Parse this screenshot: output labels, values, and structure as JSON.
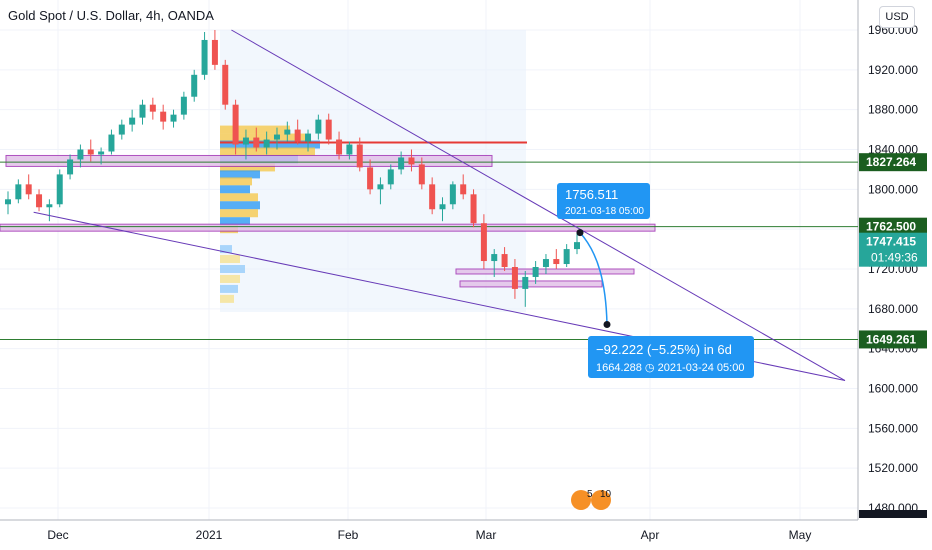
{
  "header": {
    "title": "Gold Spot / U.S. Dollar, 4h, OANDA",
    "currency_button": "USD"
  },
  "chart_data": {
    "type": "candlestick",
    "title": "Gold Spot / U.S. Dollar, 4h, OANDA",
    "y_ticks": [
      "1960.000",
      "1920.000",
      "1880.000",
      "1840.000",
      "1800.000",
      "1760.000",
      "1720.000",
      "1680.000",
      "1640.000",
      "1600.000",
      "1560.000",
      "1520.000",
      "1480.000"
    ],
    "y_tick_values": [
      1960,
      1920,
      1880,
      1840,
      1800,
      1760,
      1720,
      1680,
      1640,
      1600,
      1560,
      1520,
      1480
    ],
    "ylim": [
      1474,
      1964
    ],
    "x_ticks": [
      "Dec",
      "2021",
      "Feb",
      "Mar",
      "Apr",
      "May"
    ],
    "price_tags": [
      {
        "value": 1827.264,
        "label": "1827.264",
        "color": "#1b5e20"
      },
      {
        "value": 1762.5,
        "label": "1762.500",
        "color": "#1b5e20"
      },
      {
        "value": 1747.415,
        "label": "1747.415",
        "sub": "01:49:36",
        "color": "#26a69a"
      },
      {
        "value": 1649.261,
        "label": "1649.261",
        "color": "#1b5e20"
      }
    ],
    "horizontal_lines": [
      {
        "value": 1827.264,
        "color": "#2e7d32"
      },
      {
        "value": 1762.5,
        "color": "#2e7d32"
      },
      {
        "value": 1649.261,
        "color": "#2e7d32"
      }
    ],
    "red_level": 1847,
    "zones": [
      {
        "from": 1823,
        "to": 1834
      },
      {
        "from": 1758,
        "to": 1765
      },
      {
        "from": 1715,
        "to": 1720
      },
      {
        "from": 1702,
        "to": 1708
      }
    ],
    "trendlines": [
      {
        "from": [
          "2021-01-06",
          1960
        ],
        "to": [
          "2021-05-10",
          1608
        ]
      },
      {
        "from": [
          "2020-11-26",
          1777
        ],
        "to": [
          "2021-05-10",
          1608
        ]
      }
    ],
    "annotations": [
      {
        "label": "1756.511",
        "sub": "2021-03-18 05:00"
      },
      {
        "label": "−92.222 (−5.25%) in 6d",
        "sub": "1664.288 ◷ 2021-03-24  05:00"
      }
    ],
    "projection": {
      "from": 1756.511,
      "to": 1664.288
    },
    "earnings_labels": [
      "5",
      "10"
    ],
    "candles_approx": [
      [
        1785,
        1798,
        1775,
        1790
      ],
      [
        1790,
        1810,
        1786,
        1805
      ],
      [
        1805,
        1815,
        1790,
        1795
      ],
      [
        1795,
        1800,
        1778,
        1782
      ],
      [
        1782,
        1790,
        1768,
        1785
      ],
      [
        1785,
        1820,
        1782,
        1815
      ],
      [
        1815,
        1835,
        1810,
        1830
      ],
      [
        1830,
        1845,
        1822,
        1840
      ],
      [
        1840,
        1850,
        1828,
        1835
      ],
      [
        1835,
        1842,
        1825,
        1838
      ],
      [
        1838,
        1860,
        1835,
        1855
      ],
      [
        1855,
        1870,
        1850,
        1865
      ],
      [
        1865,
        1880,
        1858,
        1872
      ],
      [
        1872,
        1890,
        1865,
        1885
      ],
      [
        1885,
        1892,
        1870,
        1878
      ],
      [
        1878,
        1885,
        1860,
        1868
      ],
      [
        1868,
        1880,
        1862,
        1875
      ],
      [
        1875,
        1898,
        1870,
        1893
      ],
      [
        1893,
        1920,
        1888,
        1915
      ],
      [
        1915,
        1958,
        1910,
        1950
      ],
      [
        1950,
        1960,
        1920,
        1925
      ],
      [
        1925,
        1930,
        1880,
        1885
      ],
      [
        1885,
        1890,
        1835,
        1845
      ],
      [
        1845,
        1860,
        1830,
        1852
      ],
      [
        1852,
        1862,
        1838,
        1842
      ],
      [
        1842,
        1858,
        1835,
        1850
      ],
      [
        1850,
        1862,
        1840,
        1855
      ],
      [
        1855,
        1868,
        1848,
        1860
      ],
      [
        1860,
        1870,
        1845,
        1848
      ],
      [
        1848,
        1860,
        1838,
        1856
      ],
      [
        1856,
        1875,
        1850,
        1870
      ],
      [
        1870,
        1876,
        1845,
        1850
      ],
      [
        1850,
        1858,
        1830,
        1835
      ],
      [
        1835,
        1848,
        1830,
        1845
      ],
      [
        1845,
        1852,
        1818,
        1822
      ],
      [
        1822,
        1830,
        1795,
        1800
      ],
      [
        1800,
        1812,
        1785,
        1805
      ],
      [
        1805,
        1825,
        1800,
        1820
      ],
      [
        1820,
        1838,
        1815,
        1832
      ],
      [
        1832,
        1840,
        1818,
        1825
      ],
      [
        1825,
        1832,
        1800,
        1805
      ],
      [
        1805,
        1812,
        1775,
        1780
      ],
      [
        1780,
        1792,
        1768,
        1785
      ],
      [
        1785,
        1808,
        1780,
        1805
      ],
      [
        1805,
        1815,
        1790,
        1795
      ],
      [
        1795,
        1800,
        1762,
        1766
      ],
      [
        1766,
        1775,
        1720,
        1728
      ],
      [
        1728,
        1740,
        1712,
        1735
      ],
      [
        1735,
        1742,
        1718,
        1722
      ],
      [
        1722,
        1730,
        1690,
        1700
      ],
      [
        1700,
        1718,
        1682,
        1712
      ],
      [
        1712,
        1728,
        1705,
        1722
      ],
      [
        1722,
        1735,
        1715,
        1730
      ],
      [
        1730,
        1740,
        1720,
        1725
      ],
      [
        1725,
        1745,
        1722,
        1740
      ],
      [
        1740,
        1757,
        1735,
        1747
      ]
    ]
  }
}
